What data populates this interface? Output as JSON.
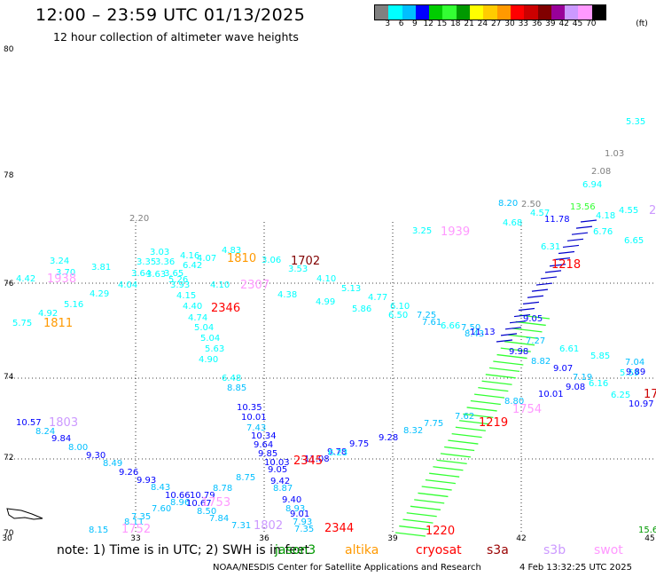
{
  "header": {
    "title": "12:00 – 23:59 UTC 01/13/2025",
    "subtitle": "12 hour collection of altimeter wave heights"
  },
  "legend": {
    "unit": "(ft)",
    "colors": [
      "#808080",
      "#00ffff",
      "#00bfff",
      "#0000ff",
      "#00cc00",
      "#33ff33",
      "#009900",
      "#ffff00",
      "#ffcc00",
      "#ff9900",
      "#ff0000",
      "#cc0000",
      "#800000",
      "#990099",
      "#cc99ff",
      "#ff99ff",
      "#000000"
    ],
    "labels": [
      "3",
      "6",
      "9",
      "12",
      "15",
      "18",
      "21",
      "24",
      "27",
      "30",
      "33",
      "36",
      "39",
      "42",
      "45",
      "70"
    ]
  },
  "axes": {
    "lat_labels": [
      "80",
      "78",
      "76",
      "74",
      "72",
      "70"
    ],
    "lon_labels": [
      "30",
      "33",
      "36",
      "39",
      "42",
      "45"
    ]
  },
  "observations": [
    {
      "t": "5.35",
      "c": "#00ffff"
    },
    {
      "t": "1.03",
      "c": "#808080"
    },
    {
      "t": "2.08",
      "c": "#808080"
    },
    {
      "t": "6.94",
      "c": "#00ffff"
    },
    {
      "t": "2.20",
      "c": "#808080"
    },
    {
      "t": "8.20",
      "c": "#00bfff"
    },
    {
      "t": "2.50",
      "c": "#808080"
    },
    {
      "t": "4.57",
      "c": "#00ffff"
    },
    {
      "t": "4.68",
      "c": "#00ffff"
    },
    {
      "t": "4.18",
      "c": "#00ffff"
    },
    {
      "t": "4.55",
      "c": "#00ffff"
    },
    {
      "t": "6.76",
      "c": "#00ffff"
    },
    {
      "t": "6.65",
      "c": "#00ffff"
    },
    {
      "t": "3.25",
      "c": "#00ffff"
    },
    {
      "t": "3.03",
      "c": "#00ffff"
    },
    {
      "t": "4.16",
      "c": "#00ffff"
    },
    {
      "t": "4.83",
      "c": "#00ffff"
    },
    {
      "t": "3.24",
      "c": "#00ffff"
    },
    {
      "t": "3.70",
      "c": "#00ffff"
    },
    {
      "t": "4.42",
      "c": "#00ffff"
    },
    {
      "t": "3.81",
      "c": "#00ffff"
    },
    {
      "t": "3.35",
      "c": "#00ffff"
    },
    {
      "t": "3.36",
      "c": "#00ffff"
    },
    {
      "t": "6.42",
      "c": "#00ffff"
    },
    {
      "t": "4.07",
      "c": "#00ffff"
    },
    {
      "t": "3.06",
      "c": "#00ffff"
    },
    {
      "t": "3.53",
      "c": "#00ffff"
    },
    {
      "t": "4.10",
      "c": "#00ffff"
    },
    {
      "t": "3.64",
      "c": "#00ffff"
    },
    {
      "t": "3.63",
      "c": "#00ffff"
    },
    {
      "t": "3.65",
      "c": "#00ffff"
    },
    {
      "t": "5.26",
      "c": "#00ffff"
    },
    {
      "t": "3.93",
      "c": "#00ffff"
    },
    {
      "t": "4.04",
      "c": "#00ffff"
    },
    {
      "t": "4.10",
      "c": "#00ffff"
    },
    {
      "t": "4.29",
      "c": "#00ffff"
    },
    {
      "t": "5.13",
      "c": "#00ffff"
    },
    {
      "t": "4.15",
      "c": "#00ffff"
    },
    {
      "t": "4.38",
      "c": "#00ffff"
    },
    {
      "t": "4.77",
      "c": "#00ffff"
    },
    {
      "t": "5.16",
      "c": "#00ffff"
    },
    {
      "t": "4.40",
      "c": "#00ffff"
    },
    {
      "t": "4.99",
      "c": "#00ffff"
    },
    {
      "t": "5.86",
      "c": "#00ffff"
    },
    {
      "t": "6.10",
      "c": "#00ffff"
    },
    {
      "t": "4.92",
      "c": "#00ffff"
    },
    {
      "t": "4.74",
      "c": "#00ffff"
    },
    {
      "t": "6.50",
      "c": "#00ffff"
    },
    {
      "t": "7.25",
      "c": "#00bfff"
    },
    {
      "t": "5.75",
      "c": "#00ffff"
    },
    {
      "t": "5.04",
      "c": "#00ffff"
    },
    {
      "t": "7.61",
      "c": "#00bfff"
    },
    {
      "t": "6.66",
      "c": "#00ffff"
    },
    {
      "t": "7.50",
      "c": "#00bfff"
    },
    {
      "t": "5.04",
      "c": "#00ffff"
    },
    {
      "t": "8.43",
      "c": "#00bfff"
    },
    {
      "t": "5.63",
      "c": "#00ffff"
    },
    {
      "t": "7.27",
      "c": "#00bfff"
    },
    {
      "t": "4.90",
      "c": "#00ffff"
    },
    {
      "t": "6.61",
      "c": "#00ffff"
    },
    {
      "t": "9.98",
      "c": "#0000ff"
    },
    {
      "t": "5.85",
      "c": "#00ffff"
    },
    {
      "t": "8.82",
      "c": "#00bfff"
    },
    {
      "t": "7.04",
      "c": "#00bfff"
    },
    {
      "t": "6.48",
      "c": "#00ffff"
    },
    {
      "t": "9.07",
      "c": "#0000ff"
    },
    {
      "t": "7.19",
      "c": "#00bfff"
    },
    {
      "t": "5.59",
      "c": "#00ffff"
    },
    {
      "t": "8.85",
      "c": "#00bfff"
    },
    {
      "t": "9.08",
      "c": "#0000ff"
    },
    {
      "t": "6.16",
      "c": "#00ffff"
    },
    {
      "t": "9.89",
      "c": "#0000ff"
    },
    {
      "t": "10.35",
      "c": "#0000ff"
    },
    {
      "t": "10.01",
      "c": "#0000ff"
    },
    {
      "t": "6.25",
      "c": "#00ffff"
    },
    {
      "t": "8.80",
      "c": "#00bfff"
    },
    {
      "t": "10.97",
      "c": "#0000ff"
    },
    {
      "t": "10.57",
      "c": "#0000ff"
    },
    {
      "t": "10.01",
      "c": "#0000ff"
    },
    {
      "t": "8.24",
      "c": "#00bfff"
    },
    {
      "t": "7.43",
      "c": "#00bfff"
    },
    {
      "t": "7.62",
      "c": "#00bfff"
    },
    {
      "t": "7.75",
      "c": "#00bfff"
    },
    {
      "t": "9.84",
      "c": "#0000ff"
    },
    {
      "t": "10.34",
      "c": "#0000ff"
    },
    {
      "t": "8.32",
      "c": "#00bfff"
    },
    {
      "t": "8.00",
      "c": "#00bfff"
    },
    {
      "t": "9.64",
      "c": "#0000ff"
    },
    {
      "t": "9.28",
      "c": "#0000ff"
    },
    {
      "t": "9.30",
      "c": "#0000ff"
    },
    {
      "t": "9.85",
      "c": "#0000ff"
    },
    {
      "t": "9.75",
      "c": "#0000ff"
    },
    {
      "t": "8.49",
      "c": "#00bfff"
    },
    {
      "t": "10.03",
      "c": "#0000ff"
    },
    {
      "t": "9.78",
      "c": "#0000ff"
    },
    {
      "t": "9.26",
      "c": "#0000ff"
    },
    {
      "t": "9.05",
      "c": "#0000ff"
    },
    {
      "t": "9.93",
      "c": "#0000ff"
    },
    {
      "t": "11.08",
      "c": "#0000ff"
    },
    {
      "t": "8.43",
      "c": "#00bfff"
    },
    {
      "t": "8.75",
      "c": "#00bfff"
    },
    {
      "t": "9.42",
      "c": "#0000ff"
    },
    {
      "t": "10.66",
      "c": "#0000ff"
    },
    {
      "t": "8.78",
      "c": "#00bfff"
    },
    {
      "t": "8.87",
      "c": "#00bfff"
    },
    {
      "t": "10.79",
      "c": "#0000ff"
    },
    {
      "t": "9.40",
      "c": "#0000ff"
    },
    {
      "t": "8.96",
      "c": "#00bfff"
    },
    {
      "t": "10.67",
      "c": "#0000ff"
    },
    {
      "t": "8.93",
      "c": "#00bfff"
    },
    {
      "t": "8.50",
      "c": "#00bfff"
    },
    {
      "t": "9.01",
      "c": "#0000ff"
    },
    {
      "t": "7.35",
      "c": "#00bfff"
    },
    {
      "t": "7.60",
      "c": "#00bfff"
    },
    {
      "t": "7.84",
      "c": "#00bfff"
    },
    {
      "t": "8.11",
      "c": "#00bfff"
    },
    {
      "t": "7.93",
      "c": "#00bfff"
    },
    {
      "t": "7.31",
      "c": "#00bfff"
    },
    {
      "t": "8.15",
      "c": "#00bfff"
    },
    {
      "t": "7.35",
      "c": "#00bfff"
    },
    {
      "t": "6.23",
      "c": "#00ffff"
    },
    {
      "t": "6.31",
      "c": "#00ffff"
    },
    {
      "t": "9.05",
      "c": "#0000ff"
    },
    {
      "t": "11.13",
      "c": "#0000ff"
    },
    {
      "t": "11.78",
      "c": "#0000ff"
    },
    {
      "t": "13.56",
      "c": "#33ff33"
    },
    {
      "t": "15.60",
      "c": "#009900"
    },
    {
      "t": "7.01",
      "c": "#ffcc00"
    },
    {
      "t": "1.3",
      "c": "#00cc00"
    }
  ],
  "time_labels": [
    {
      "t": "1939",
      "c": "#ff99ff"
    },
    {
      "t": "1938",
      "c": "#ff99ff"
    },
    {
      "t": "1810",
      "c": "#ff9900"
    },
    {
      "t": "1702",
      "c": "#800000"
    },
    {
      "t": "2307",
      "c": "#ff99ff"
    },
    {
      "t": "2346",
      "c": "#ff0000"
    },
    {
      "t": "1811",
      "c": "#ff9900"
    },
    {
      "t": "1218",
      "c": "#ff0000"
    },
    {
      "t": "1803",
      "c": "#cc99ff"
    },
    {
      "t": "1754",
      "c": "#ff99ff"
    },
    {
      "t": "1219",
      "c": "#ff0000"
    },
    {
      "t": "2345",
      "c": "#ff0000"
    },
    {
      "t": "1753",
      "c": "#ff99ff"
    },
    {
      "t": "1802",
      "c": "#cc99ff"
    },
    {
      "t": "1752",
      "c": "#ff99ff"
    },
    {
      "t": "2344",
      "c": "#ff0000"
    },
    {
      "t": "1220",
      "c": "#ff0000"
    },
    {
      "t": "17",
      "c": "#cc0000"
    },
    {
      "t": "2",
      "c": "#cc99ff"
    }
  ],
  "footer": {
    "note": "note: 1) Time is in UTC; 2) SWH is in feet",
    "satellites": [
      {
        "name": "jason3",
        "color": "#009900"
      },
      {
        "name": "altika",
        "color": "#ff9900"
      },
      {
        "name": "cryosat",
        "color": "#ff0000"
      },
      {
        "name": "s3a",
        "color": "#990000"
      },
      {
        "name": "s3b",
        "color": "#cc99ff"
      },
      {
        "name": "swot",
        "color": "#ff99ff"
      }
    ],
    "credit": "NOAA/NESDIS Center for Satellite Applications and Research",
    "generated": "4 Feb 13:32:25 UTC 2025"
  }
}
